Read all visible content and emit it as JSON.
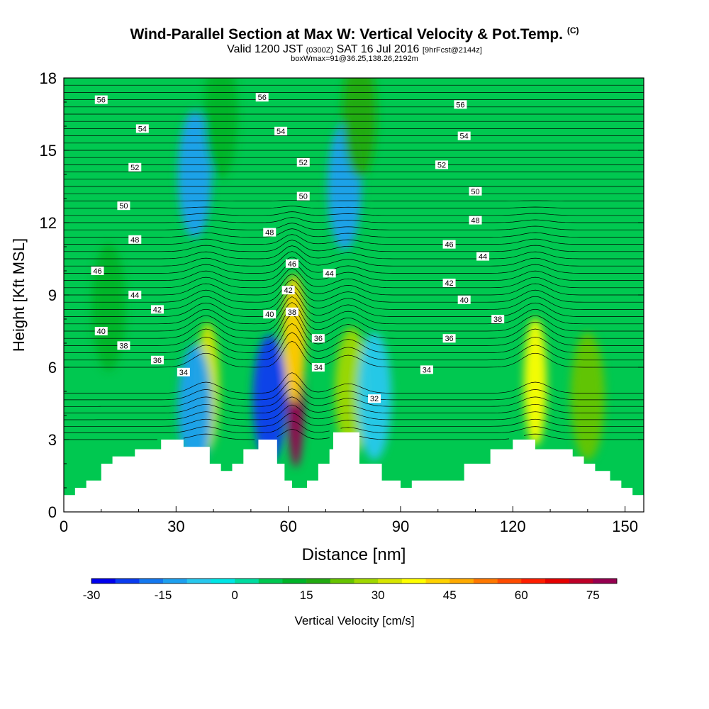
{
  "header": {
    "title": "Wind-Parallel Section at Max W: Vertical Velocity & Pot.Temp.",
    "title_mark": "(C)",
    "valid_prefix": "Valid 1200 JST",
    "valid_utc": "(0300Z)",
    "valid_date": "SAT 16 Jul 2016",
    "forecast": "[9hrFcst@2144z]",
    "box_info": "boxWmax=91@36.25,138.26,2192m"
  },
  "chart_data": {
    "type": "heatmap",
    "xlabel": "Distance [nm]",
    "ylabel": "Height [Kft MSL]",
    "xlim": [
      0,
      155
    ],
    "ylim": [
      0,
      18
    ],
    "x_ticks": [
      0,
      30,
      60,
      90,
      120,
      150
    ],
    "y_ticks": [
      0,
      3,
      6,
      9,
      12,
      15,
      18
    ],
    "colorbar": {
      "label": "Vertical Velocity [cm/s]",
      "range": [
        -30,
        80
      ],
      "step": 5,
      "tick_labels": [
        -30,
        -15,
        0,
        15,
        30,
        45,
        60,
        75
      ],
      "colors": [
        "#0000ee",
        "#0a3cf0",
        "#1478f0",
        "#1ea0f0",
        "#28c8ee",
        "#00e6e6",
        "#00dca0",
        "#00c850",
        "#00b428",
        "#22aa11",
        "#66c400",
        "#a0d800",
        "#d8e600",
        "#ffff00",
        "#ffd200",
        "#ffaa00",
        "#ff7800",
        "#ff4b00",
        "#ff1e00",
        "#e60000",
        "#be0028",
        "#960050"
      ]
    },
    "background_velocity": 8,
    "updraft_downdraft_cores": [
      {
        "x": 62,
        "z": 4.8,
        "w": 78,
        "label": "max updraft"
      },
      {
        "x": 61.5,
        "z": 7.2,
        "w": 42
      },
      {
        "x": 55,
        "z": 4.7,
        "w": -24
      },
      {
        "x": 38.5,
        "z": 5.2,
        "w": 32
      },
      {
        "x": 35,
        "z": 4.3,
        "w": -14
      },
      {
        "x": 77,
        "z": 5.0,
        "w": 28
      },
      {
        "x": 83,
        "z": 4.8,
        "w": -6
      },
      {
        "x": 126,
        "z": 5.4,
        "w": 38
      },
      {
        "x": 140,
        "z": 4.8,
        "w": 22
      },
      {
        "x": 35,
        "z": 14,
        "w": -12
      },
      {
        "x": 75,
        "z": 13.5,
        "w": -12
      },
      {
        "x": 79,
        "z": 16.5,
        "w": 18
      },
      {
        "x": 42,
        "z": 16.5,
        "w": 14
      },
      {
        "x": 12,
        "z": 8.5,
        "w": 14
      }
    ],
    "terrain_profile": [
      {
        "x": 0,
        "z": 0.7
      },
      {
        "x": 3,
        "z": 1.0
      },
      {
        "x": 6,
        "z": 1.3
      },
      {
        "x": 10,
        "z": 2.0
      },
      {
        "x": 13,
        "z": 2.3
      },
      {
        "x": 19,
        "z": 2.6
      },
      {
        "x": 26,
        "z": 3.0
      },
      {
        "x": 32,
        "z": 2.7
      },
      {
        "x": 39,
        "z": 2.0
      },
      {
        "x": 42,
        "z": 1.7
      },
      {
        "x": 45,
        "z": 2.0
      },
      {
        "x": 48,
        "z": 2.6
      },
      {
        "x": 52,
        "z": 3.0
      },
      {
        "x": 57,
        "z": 2.0
      },
      {
        "x": 59,
        "z": 1.3
      },
      {
        "x": 61,
        "z": 1.0
      },
      {
        "x": 65,
        "z": 1.3
      },
      {
        "x": 68,
        "z": 2.0
      },
      {
        "x": 71,
        "z": 2.6
      },
      {
        "x": 72,
        "z": 3.3
      },
      {
        "x": 79,
        "z": 2.0
      },
      {
        "x": 85,
        "z": 1.3
      },
      {
        "x": 90,
        "z": 1.0
      },
      {
        "x": 93,
        "z": 1.3
      },
      {
        "x": 107,
        "z": 2.0
      },
      {
        "x": 114,
        "z": 2.6
      },
      {
        "x": 120,
        "z": 3.0
      },
      {
        "x": 126,
        "z": 2.6
      },
      {
        "x": 136,
        "z": 2.3
      },
      {
        "x": 139,
        "z": 2.0
      },
      {
        "x": 142,
        "z": 1.7
      },
      {
        "x": 146,
        "z": 1.3
      },
      {
        "x": 149,
        "z": 1.0
      },
      {
        "x": 152,
        "z": 0.7
      },
      {
        "x": 155,
        "z": 0.7
      }
    ],
    "isentrope_labels": [
      {
        "v": 56,
        "x": 10,
        "z": 17.1
      },
      {
        "v": 56,
        "x": 53,
        "z": 17.2
      },
      {
        "v": 56,
        "x": 106,
        "z": 16.9
      },
      {
        "v": 54,
        "x": 21,
        "z": 15.9
      },
      {
        "v": 54,
        "x": 58,
        "z": 15.8
      },
      {
        "v": 54,
        "x": 107,
        "z": 15.6
      },
      {
        "v": 52,
        "x": 19,
        "z": 14.3
      },
      {
        "v": 52,
        "x": 64,
        "z": 14.5
      },
      {
        "v": 52,
        "x": 101,
        "z": 14.4
      },
      {
        "v": 50,
        "x": 16,
        "z": 12.7
      },
      {
        "v": 50,
        "x": 64,
        "z": 13.1
      },
      {
        "v": 50,
        "x": 110,
        "z": 13.3
      },
      {
        "v": 48,
        "x": 19,
        "z": 11.3
      },
      {
        "v": 48,
        "x": 55,
        "z": 11.6
      },
      {
        "v": 48,
        "x": 110,
        "z": 12.1
      },
      {
        "v": 46,
        "x": 9,
        "z": 10.0
      },
      {
        "v": 46,
        "x": 61,
        "z": 10.3
      },
      {
        "v": 46,
        "x": 103,
        "z": 11.1
      },
      {
        "v": 44,
        "x": 19,
        "z": 9.0
      },
      {
        "v": 44,
        "x": 71,
        "z": 9.9
      },
      {
        "v": 44,
        "x": 112,
        "z": 10.6
      },
      {
        "v": 42,
        "x": 25,
        "z": 8.4
      },
      {
        "v": 42,
        "x": 60,
        "z": 9.2
      },
      {
        "v": 42,
        "x": 103,
        "z": 9.5
      },
      {
        "v": 40,
        "x": 10,
        "z": 7.5
      },
      {
        "v": 40,
        "x": 55,
        "z": 8.2
      },
      {
        "v": 40,
        "x": 107,
        "z": 8.8
      },
      {
        "v": 38,
        "x": 16,
        "z": 6.9
      },
      {
        "v": 38,
        "x": 61,
        "z": 8.3
      },
      {
        "v": 38,
        "x": 116,
        "z": 8.0
      },
      {
        "v": 36,
        "x": 25,
        "z": 6.3
      },
      {
        "v": 36,
        "x": 68,
        "z": 7.2
      },
      {
        "v": 36,
        "x": 103,
        "z": 7.2
      },
      {
        "v": 34,
        "x": 32,
        "z": 5.8
      },
      {
        "v": 34,
        "x": 68,
        "z": 6.0
      },
      {
        "v": 34,
        "x": 97,
        "z": 5.9
      },
      {
        "v": 32,
        "x": 83,
        "z": 4.7
      }
    ]
  }
}
